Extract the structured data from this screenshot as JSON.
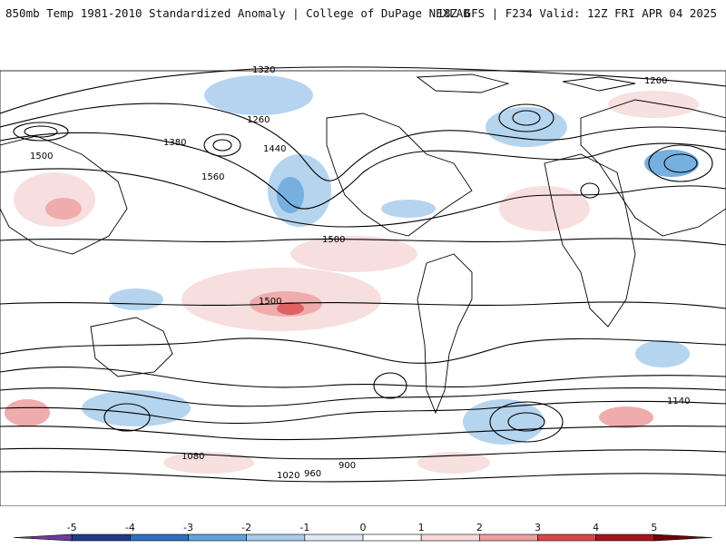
{
  "header": {
    "title": "850mb Temp 1981-2010 Standardized Anomaly | College of DuPage NEXLAB",
    "run": "18Z GFS | F234 Valid: 12Z FRI APR 04 2025"
  },
  "contour_labels": [
    "1320",
    "1260",
    "1200",
    "1500",
    "1440",
    "1380",
    "1560",
    "1500",
    "1500",
    "1140",
    "1080",
    "1020",
    "960",
    "900"
  ],
  "colorbar": {
    "ticks": [
      {
        "label": "-5",
        "value": -5
      },
      {
        "label": "-4",
        "value": -4
      },
      {
        "label": "-3",
        "value": -3
      },
      {
        "label": "-2",
        "value": -2
      },
      {
        "label": "-1",
        "value": -1
      },
      {
        "label": "0",
        "value": 0
      },
      {
        "label": "1",
        "value": 1
      },
      {
        "label": "2",
        "value": 2
      },
      {
        "label": "3",
        "value": 3
      },
      {
        "label": "4",
        "value": 4
      },
      {
        "label": "5",
        "value": 5
      }
    ],
    "colors": [
      "#6a3d9a",
      "#1f3b8a",
      "#2f6fc0",
      "#5fa3dc",
      "#a9cdec",
      "#dfeaf6",
      "#ffffff",
      "#f6dada",
      "#ee9e9e",
      "#d9464a",
      "#a8141b",
      "#6e0509",
      "#f5b800"
    ]
  },
  "map": {
    "background": "#ffffff",
    "land_line": "#000000"
  }
}
